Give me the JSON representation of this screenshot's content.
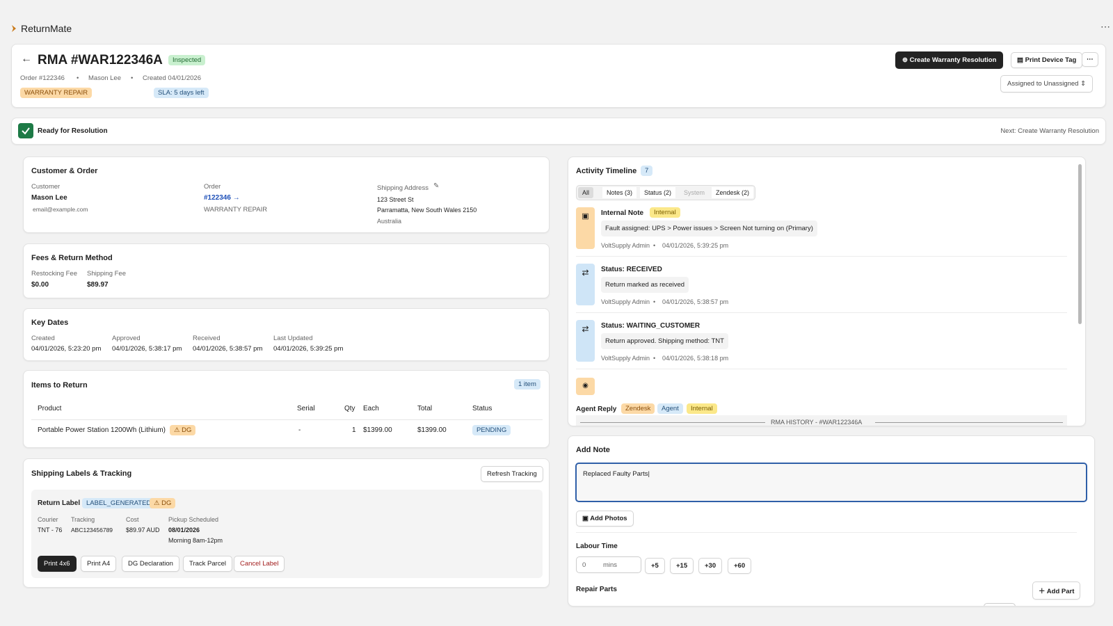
{
  "app": {
    "name": "ReturnMate"
  },
  "header": {
    "title": "RMA #WAR122346A",
    "status": "Inspected",
    "order": "Order #122346",
    "customer": "Mason Lee",
    "created": "Created 04/01/2026",
    "type_badge": "WARRANTY REPAIR",
    "sla": "SLA: 5 days left",
    "create_button": "Create Warranty Resolution",
    "print_button": "Print Device Tag",
    "assigned": "Assigned to Unassigned"
  },
  "banner": {
    "status": "Ready for Resolution",
    "next": "Next: Create Warranty Resolution"
  },
  "customer_order": {
    "title": "Customer & Order",
    "customer_label": "Customer",
    "customer_name": "Mason Lee",
    "email": "email@example.com",
    "order_label": "Order",
    "order_link": "#122346 →",
    "order_type": "WARRANTY REPAIR",
    "address_label": "Shipping Address",
    "address": [
      "123 Street St",
      "Parramatta, New South Wales 2150",
      "Australia"
    ]
  },
  "fees": {
    "title": "Fees & Return Method",
    "items": [
      {
        "label": "Restocking Fee",
        "value": "$0.00"
      },
      {
        "label": "Shipping Fee",
        "value": "$89.97"
      }
    ]
  },
  "dates": {
    "title": "Key Dates",
    "items": [
      {
        "label": "Created",
        "value": "04/01/2026, 5:23:20 pm"
      },
      {
        "label": "Approved",
        "value": "04/01/2026, 5:38:17 pm"
      },
      {
        "label": "Received",
        "value": "04/01/2026, 5:38:57 pm"
      },
      {
        "label": "Last Updated",
        "value": "04/01/2026, 5:39:25 pm"
      }
    ]
  },
  "items": {
    "title": "Items to Return",
    "count": "1 item",
    "columns": [
      "Product",
      "Serial",
      "Qty",
      "Each",
      "Total",
      "Status"
    ],
    "rows": [
      {
        "product": "Portable Power Station 1200Wh (Lithium)",
        "dg": "DG",
        "serial": "-",
        "qty": "1",
        "each": "$1399.00",
        "total": "$1399.00",
        "status": "PENDING"
      }
    ]
  },
  "shipping": {
    "title": "Shipping Labels & Tracking",
    "refresh": "Refresh Tracking",
    "label_title": "Return Label",
    "label_status": "LABEL_GENERATED",
    "dg": "DG",
    "fields": [
      {
        "label": "Courier",
        "value": "TNT - 76"
      },
      {
        "label": "Tracking",
        "value": "ABC123456789"
      },
      {
        "label": "Cost",
        "value": "$89.97 AUD"
      },
      {
        "label": "Pickup Scheduled",
        "value": "08/01/2026"
      }
    ],
    "pickup_note": "Morning 8am-12pm",
    "buttons": [
      "Print 4x6",
      "Print A4",
      "DG Declaration",
      "Track Parcel",
      "Cancel Label"
    ]
  },
  "timeline": {
    "title": "Activity Timeline",
    "count": "7",
    "tabs": [
      "All",
      "Notes (3)",
      "Status (2)",
      "System",
      "Zendesk (2)"
    ],
    "entries": [
      {
        "title": "Internal Note",
        "tag": "Internal",
        "body": "Fault assigned: UPS > Power issues > Screen Not turning on (Primary)",
        "author": "VoltSupply Admin",
        "time": "04/01/2026, 5:39:25 pm"
      },
      {
        "title": "Status: RECEIVED",
        "body": "Return marked as received",
        "author": "VoltSupply Admin",
        "time": "04/01/2026, 5:38:57 pm"
      },
      {
        "title": "Status: WAITING_CUSTOMER",
        "body": "Return approved. Shipping method: TNT",
        "author": "VoltSupply Admin",
        "time": "04/01/2026, 5:38:18 pm"
      }
    ],
    "last_title": "Agent Reply",
    "last_tags": [
      "Zendesk",
      "Agent",
      "Internal"
    ],
    "divider": "RMA HISTORY - #WAR122346A"
  },
  "add_note": {
    "title": "Add Note",
    "text": "Replaced Faulty Parts",
    "add_photos": "Add Photos",
    "labour_title": "Labour Time",
    "labour_value": "0",
    "labour_unit": "mins",
    "increments": [
      "+5",
      "+15",
      "+30",
      "+60"
    ],
    "parts_title": "Repair Parts",
    "add_part": "Add Part"
  }
}
